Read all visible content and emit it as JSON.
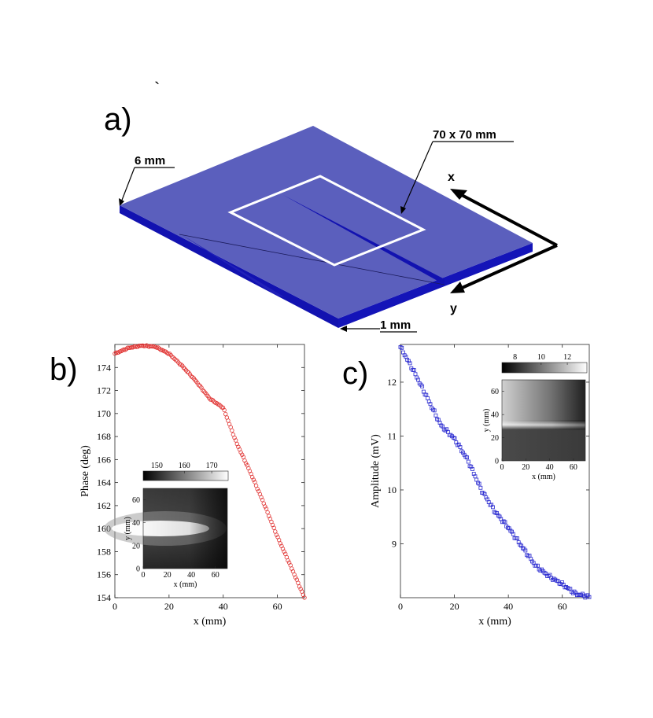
{
  "panel_a": {
    "label": "a)",
    "tick_mark": "`",
    "dimension_thickness": "6 mm",
    "dimension_scan": "70 x 70 mm",
    "dimension_slot": "1 mm",
    "axis_x": "x",
    "axis_y": "y",
    "colors": {
      "top": "#5b5fbd",
      "side": "#1212b0",
      "scan_area": "#ffffff"
    }
  },
  "chart_data": [
    {
      "type": "scatter",
      "panel_label": "b)",
      "xlabel": "x (mm)",
      "ylabel": "Phase (deg)",
      "xlim": [
        0,
        70
      ],
      "ylim": [
        154,
        176
      ],
      "xticks": [
        0,
        20,
        40,
        60
      ],
      "yticks": [
        154,
        156,
        158,
        160,
        162,
        164,
        166,
        168,
        170,
        172,
        174
      ],
      "marker": "circle",
      "color": "#e0302f",
      "profile_points": [
        [
          0,
          175.2
        ],
        [
          5,
          175.7
        ],
        [
          10,
          175.9
        ],
        [
          15,
          175.8
        ],
        [
          20,
          175.2
        ],
        [
          25,
          174.1
        ],
        [
          30,
          172.8
        ],
        [
          35,
          171.3
        ],
        [
          40,
          170.5
        ],
        [
          45,
          167.4
        ],
        [
          50,
          164.9
        ],
        [
          55,
          162.2
        ],
        [
          60,
          159.3
        ],
        [
          65,
          156.7
        ],
        [
          70,
          154.0
        ]
      ],
      "inset": {
        "type": "heatmap",
        "colorbar_ticks": [
          150,
          160,
          170
        ],
        "colorbar_range": [
          145,
          176
        ],
        "xlabel": "x (mm)",
        "ylabel": "y (mm)",
        "xticks": [
          0,
          20,
          40,
          60
        ],
        "yticks": [
          0,
          20,
          40,
          60
        ],
        "colormap": "gray",
        "band_y_mm": 35
      }
    },
    {
      "type": "scatter",
      "panel_label": "c)",
      "xlabel": "x (mm)",
      "ylabel": "Amplitude (mV)",
      "xlim": [
        0,
        70
      ],
      "ylim": [
        8,
        12.7
      ],
      "xticks": [
        0,
        20,
        40,
        60
      ],
      "yticks": [
        9,
        10,
        11,
        12
      ],
      "marker": "square",
      "color": "#2a2ad0",
      "profile_points": [
        [
          0,
          12.65
        ],
        [
          5,
          12.2
        ],
        [
          10,
          11.7
        ],
        [
          15,
          11.2
        ],
        [
          20,
          10.95
        ],
        [
          25,
          10.55
        ],
        [
          30,
          10.0
        ],
        [
          35,
          9.6
        ],
        [
          40,
          9.3
        ],
        [
          45,
          8.95
        ],
        [
          50,
          8.6
        ],
        [
          55,
          8.4
        ],
        [
          60,
          8.25
        ],
        [
          65,
          8.07
        ],
        [
          70,
          8.02
        ]
      ],
      "inset": {
        "type": "heatmap",
        "colorbar_ticks": [
          8,
          10,
          12
        ],
        "colorbar_range": [
          7,
          13.5
        ],
        "xlabel": "x (mm)",
        "ylabel": "y (mm)",
        "xticks": [
          0,
          20,
          40,
          60
        ],
        "yticks": [
          0,
          20,
          40,
          60
        ],
        "colormap": "gray",
        "band_y_mm": 31
      }
    }
  ]
}
